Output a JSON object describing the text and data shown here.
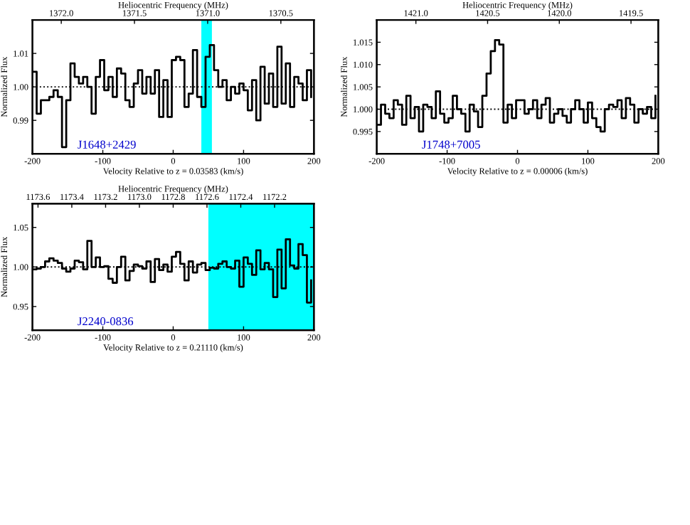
{
  "chart_data": [
    {
      "type": "step",
      "xlabel": "Velocity Relative to z = 0.03583 (km/s)",
      "ylabel": "Normalized Flux",
      "x2label": "Heliocentric Frequency (MHz)",
      "xlim": [
        -200,
        200
      ],
      "xticks": [
        -200,
        -100,
        0,
        100,
        200
      ],
      "ylim": [
        0.98,
        1.02
      ],
      "yticks": [
        {
          "value": 0.99,
          "label": "0.99"
        },
        {
          "value": 1.0,
          "label": "1.00"
        },
        {
          "value": 1.01,
          "label": "1.01"
        }
      ],
      "x2lim": [
        1372.197,
        1370.274
      ],
      "x2ticks": [
        {
          "value": 1372.0,
          "label": "1372.0"
        },
        {
          "value": 1371.5,
          "label": "1371.5"
        },
        {
          "value": 1371.0,
          "label": "1371.0"
        },
        {
          "value": 1370.5,
          "label": "1370.5"
        }
      ],
      "ref_lines": [
        {
          "axis": "y",
          "value": 1.0,
          "line_style": "dotted",
          "color": "#000000"
        }
      ],
      "bands": [
        {
          "axis": "x",
          "from": 40,
          "to": 55,
          "color": "#00ffff"
        }
      ],
      "annotations": [
        "J1648+2429"
      ],
      "series": [
        {
          "color": "#000000",
          "x": [
            -200,
            -194,
            -188,
            -182,
            -176,
            -170,
            -164,
            -158,
            -152,
            -146,
            -140,
            -134,
            -128,
            -122,
            -116,
            -110,
            -104,
            -98,
            -92,
            -86,
            -80,
            -74,
            -68,
            -62,
            -56,
            -50,
            -44,
            -38,
            -32,
            -26,
            -20,
            -14,
            -8,
            -2,
            4,
            10,
            16,
            22,
            28,
            34,
            40,
            46,
            52,
            58,
            64,
            70,
            76,
            82,
            88,
            94,
            100,
            106,
            112,
            118,
            124,
            130,
            136,
            142,
            148,
            154,
            160,
            166,
            172,
            178,
            184,
            190,
            196
          ],
          "values": [
            1.0045,
            0.992,
            0.996,
            0.996,
            0.997,
            0.999,
            0.997,
            0.982,
            0.996,
            1.007,
            1.003,
            1.001,
            1.003,
            1.0,
            0.992,
            1.003,
            1.008,
            0.999,
            1.003,
            0.997,
            1.0055,
            1.004,
            0.996,
            0.994,
            1.001,
            1.005,
            0.998,
            1.003,
            0.998,
            1.005,
            0.991,
            1.002,
            0.991,
            1.008,
            1.009,
            1.008,
            0.994,
            0.998,
            1.011,
            0.997,
            0.994,
            1.009,
            1.0125,
            1.005,
            1.0,
            1.002,
            0.996,
            1.0,
            0.998,
            1.001,
            0.999,
            0.993,
            1.002,
            0.99,
            1.006,
            0.995,
            1.004,
            0.994,
            1.012,
            0.995,
            1.007,
            0.994,
            1.003,
            1.001,
            0.996,
            1.005,
            0.997
          ]
        }
      ]
    },
    {
      "type": "step",
      "xlabel": "Velocity Relative to z = 0.00006 (km/s)",
      "ylabel": "Normalized Flux",
      "x2label": "Heliocentric Frequency (MHz)",
      "xlim": [
        -200,
        200
      ],
      "xticks": [
        -200,
        -100,
        0,
        100,
        200
      ],
      "ylim": [
        0.99,
        1.02
      ],
      "yticks": [
        {
          "value": 0.995,
          "label": "0.995"
        },
        {
          "value": 1.0,
          "label": "1.000"
        },
        {
          "value": 1.005,
          "label": "1.005"
        },
        {
          "value": 1.01,
          "label": "1.010"
        },
        {
          "value": 1.015,
          "label": "1.015"
        }
      ],
      "x2lim": [
        1421.273,
        1419.31
      ],
      "x2ticks": [
        {
          "value": 1421.0,
          "label": "1421.0"
        },
        {
          "value": 1420.5,
          "label": "1420.5"
        },
        {
          "value": 1420.0,
          "label": "1420.0"
        },
        {
          "value": 1419.5,
          "label": "1419.5"
        }
      ],
      "ref_lines": [
        {
          "axis": "y",
          "value": 1.0,
          "line_style": "dotted",
          "color": "#000000"
        }
      ],
      "annotations": [
        "J1748+7005"
      ],
      "series": [
        {
          "color": "#000000",
          "x": [
            -200,
            -194,
            -188,
            -182,
            -176,
            -170,
            -164,
            -158,
            -152,
            -146,
            -140,
            -134,
            -128,
            -122,
            -116,
            -110,
            -104,
            -98,
            -92,
            -86,
            -80,
            -74,
            -68,
            -62,
            -56,
            -50,
            -44,
            -38,
            -32,
            -26,
            -20,
            -14,
            -8,
            -2,
            4,
            10,
            16,
            22,
            28,
            34,
            40,
            46,
            52,
            58,
            64,
            70,
            76,
            82,
            88,
            94,
            100,
            106,
            112,
            118,
            124,
            130,
            136,
            142,
            148,
            154,
            160,
            166,
            172,
            178,
            184,
            190,
            196
          ],
          "values": [
            0.9965,
            1.001,
            0.999,
            0.998,
            1.002,
            1.001,
            0.9965,
            1.003,
            0.998,
            1.0005,
            0.995,
            1.001,
            1.0005,
            0.998,
            1.004,
            0.999,
            0.997,
            0.998,
            1.003,
            1.0,
            0.999,
            0.995,
            1.001,
            0.9995,
            0.996,
            1.003,
            1.008,
            1.013,
            1.0155,
            1.0145,
            0.997,
            1.001,
            0.998,
            1.002,
            1.002,
            0.999,
            1.0,
            1.002,
            0.998,
            1.001,
            1.0025,
            0.997,
            0.999,
            1.0,
            0.9985,
            0.997,
            1.0,
            1.002,
            1.0,
            0.997,
            1.0015,
            0.998,
            0.996,
            0.995,
            1.0,
            1.001,
            1.0005,
            1.002,
            0.998,
            1.0025,
            1.001,
            0.997,
            1.0,
            0.999,
            1.0005,
            0.998,
            1.003
          ]
        }
      ]
    },
    {
      "type": "step",
      "xlabel": "Velocity Relative to z = 0.21110 (km/s)",
      "ylabel": "Normalized Flux",
      "x2label": "Heliocentric Frequency (MHz)",
      "xlim": [
        -200,
        200
      ],
      "xticks": [
        -200,
        -100,
        0,
        100,
        200
      ],
      "ylim": [
        0.92,
        1.08
      ],
      "yticks": [
        {
          "value": 0.95,
          "label": "0.95"
        },
        {
          "value": 1.0,
          "label": "1.00"
        },
        {
          "value": 1.05,
          "label": "1.05"
        }
      ],
      "x2lim": [
        1173.633,
        1171.967
      ],
      "x2ticks": [
        {
          "value": 1173.6,
          "label": "1173.6"
        },
        {
          "value": 1173.4,
          "label": "1173.4"
        },
        {
          "value": 1173.2,
          "label": "1173.2"
        },
        {
          "value": 1173.0,
          "label": "1173.0"
        },
        {
          "value": 1172.8,
          "label": "1172.8"
        },
        {
          "value": 1172.6,
          "label": "1172.6"
        },
        {
          "value": 1172.4,
          "label": "1172.4"
        },
        {
          "value": 1172.2,
          "label": "1172.2"
        }
      ],
      "ref_lines": [
        {
          "axis": "y",
          "value": 1.0,
          "line_style": "dotted",
          "color": "#000000"
        }
      ],
      "bands": [
        {
          "axis": "x",
          "from": 50,
          "to": 200,
          "color": "#00ffff"
        }
      ],
      "annotations": [
        "J2240-0836"
      ],
      "series": [
        {
          "color": "#000000",
          "x": [
            -200,
            -194,
            -188,
            -182,
            -176,
            -170,
            -164,
            -158,
            -152,
            -146,
            -140,
            -134,
            -128,
            -122,
            -116,
            -110,
            -104,
            -98,
            -92,
            -86,
            -80,
            -74,
            -68,
            -62,
            -56,
            -50,
            -44,
            -38,
            -32,
            -26,
            -20,
            -14,
            -8,
            -2,
            4,
            10,
            16,
            22,
            28,
            34,
            40,
            46,
            52,
            58,
            64,
            70,
            76,
            82,
            88,
            94,
            100,
            106,
            112,
            118,
            124,
            130,
            136,
            142,
            148,
            154,
            160,
            166,
            172,
            178,
            184,
            190,
            196
          ],
          "values": [
            0.997,
            0.998,
            1.0,
            1.007,
            1.011,
            1.008,
            1.005,
            0.998,
            0.994,
            0.998,
            1.008,
            1.006,
            0.997,
            1.033,
            1.0,
            1.012,
            1.0,
            1.001,
            0.985,
            0.98,
            1.0,
            1.013,
            0.983,
            0.995,
            1.003,
            1.001,
            0.998,
            1.007,
            0.981,
            1.01,
            0.996,
            1.003,
            0.994,
            1.013,
            1.019,
            1.004,
            0.983,
            1.007,
            0.993,
            1.003,
            1.005,
            0.996,
            0.999,
            0.998,
            1.004,
            1.007,
            1.0,
            0.998,
            1.008,
            0.975,
            1.012,
            1.004,
            0.99,
            1.021,
            0.997,
            1.005,
            0.997,
            0.962,
            1.022,
            0.973,
            1.035,
            1.002,
            0.998,
            1.029,
            1.015,
            0.955,
            0.983
          ]
        }
      ]
    }
  ]
}
